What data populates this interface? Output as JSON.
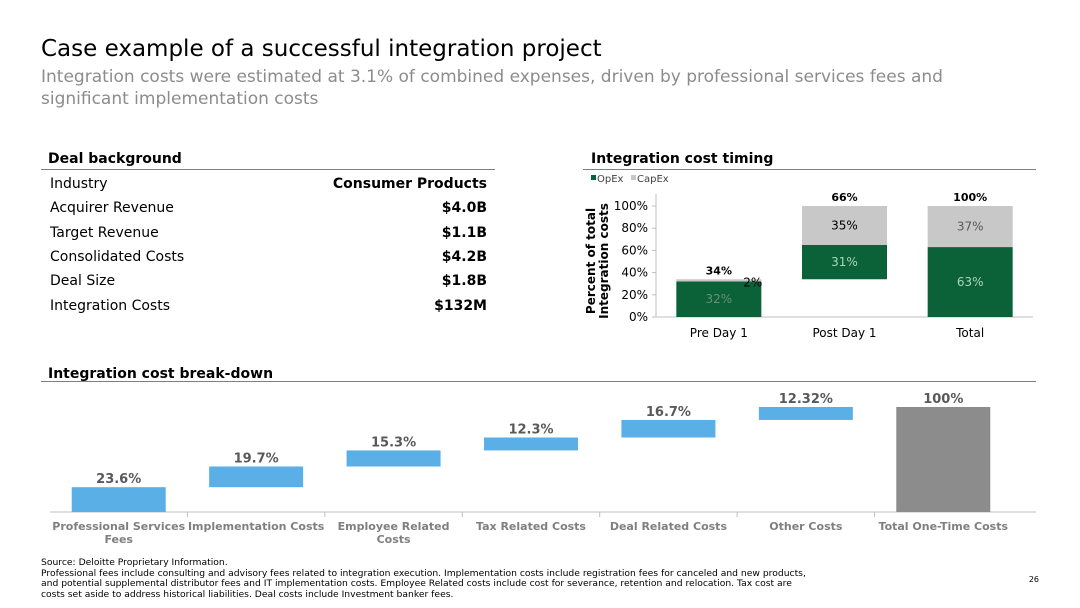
{
  "header": {
    "title": "Case example of a successful integration project",
    "subtitle": "Integration costs were estimated at 3.1% of combined expenses, driven by professional services fees and significant implementation costs"
  },
  "deal_background": {
    "heading": "Deal background",
    "rows": [
      {
        "label": "Industry",
        "value": "Consumer Products"
      },
      {
        "label": "Acquirer Revenue",
        "value": "$4.0B"
      },
      {
        "label": "Target Revenue",
        "value": "$1.1B"
      },
      {
        "label": "Consolidated Costs",
        "value": "$4.2B"
      },
      {
        "label": "Deal Size",
        "value": "$1.8B"
      },
      {
        "label": "Integration Costs",
        "value": "$132M"
      }
    ]
  },
  "timing_heading": "Integration cost timing",
  "breakdown_heading": "Integration cost break-down",
  "footer": {
    "source": "Source: Deloitte Proprietary Information.",
    "lines": [
      "Professional fees include consulting and advisory fees related to integration execution. Implementation costs include registration fees for canceled and new products,",
      "and potential supplemental distributor fees and IT implementation costs. Employee Related costs include cost for severance, retention and relocation. Tax cost are",
      "costs set aside to address historical liabilities. Deal costs include Investment banker fees."
    ],
    "page_number": "26"
  },
  "colors": {
    "opex": "#0b6138",
    "capex": "#c8c8c8",
    "waterfall": "#5aafe6",
    "total_bar": "#8c8c8c"
  },
  "chart_data": [
    {
      "type": "bar",
      "stacked": true,
      "title": "Integration cost timing",
      "ylabel": "Percent of total Integration costs",
      "categories": [
        "Pre Day 1",
        "Post Day 1",
        "Total"
      ],
      "series": [
        {
          "name": "OpEx",
          "values": [
            32,
            31,
            63
          ],
          "labels": [
            "32%",
            "31%",
            "63%"
          ]
        },
        {
          "name": "CapEx",
          "values": [
            2,
            35,
            37
          ],
          "labels": [
            "2%",
            "35%",
            "37%"
          ]
        }
      ],
      "bar_base": [
        0,
        34,
        0
      ],
      "totals": [
        "34%",
        "66%",
        "100%"
      ],
      "ylim": [
        0,
        100
      ],
      "yticks": [
        "0%",
        "20%",
        "40%",
        "60%",
        "80%",
        "100%"
      ],
      "legend": "top-left"
    },
    {
      "type": "bar",
      "subtype": "waterfall",
      "title": "Integration cost break-down",
      "categories": [
        "Professional Services Fees",
        "Implementation Costs",
        "Employee Related Costs",
        "Tax Related Costs",
        "Deal Related Costs",
        "Other Costs",
        "Total One-Time Costs"
      ],
      "category_lines": [
        [
          "Professional Services",
          "Fees"
        ],
        [
          "Implementation Costs"
        ],
        [
          "Employee     Related",
          "Costs"
        ],
        [
          "Tax Related Costs"
        ],
        [
          "Deal Related Costs"
        ],
        [
          "Other Costs"
        ],
        [
          "Total One-Time Costs"
        ]
      ],
      "labels": [
        "23.6%",
        "19.7%",
        "15.3%",
        "12.3%",
        "16.7%",
        "12.32%",
        "100%"
      ],
      "total_label": "100%",
      "ylim": [
        0,
        100
      ]
    }
  ]
}
